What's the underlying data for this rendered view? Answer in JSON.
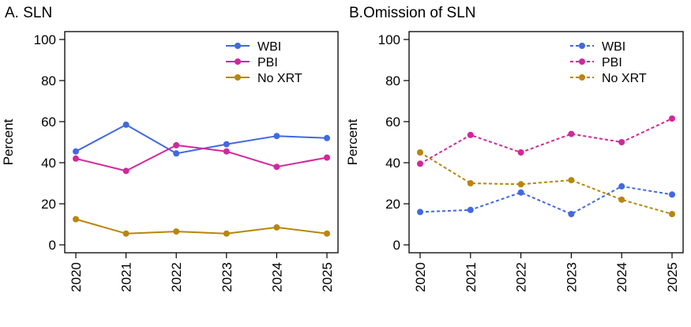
{
  "chart_data": [
    {
      "type": "line",
      "title": "A. SLN",
      "ylabel": "Percent",
      "xlabel": "",
      "categories": [
        "2020",
        "2021",
        "2022",
        "2023",
        "2024",
        "2025"
      ],
      "yticks": [
        0,
        20,
        40,
        60,
        80,
        100
      ],
      "ylim": [
        0,
        100
      ],
      "grid": false,
      "legend_position": "top-right",
      "line_style": "solid",
      "series": [
        {
          "name": "WBI",
          "color": "#4169e1",
          "values": [
            45.5,
            58.5,
            44.5,
            49,
            53,
            52
          ]
        },
        {
          "name": "PBI",
          "color": "#d2279b",
          "values": [
            42,
            36,
            48.5,
            45.5,
            38,
            42.5
          ]
        },
        {
          "name": "No XRT",
          "color": "#b8860b",
          "values": [
            12.5,
            5.5,
            6.5,
            5.5,
            8.5,
            5.5
          ]
        }
      ]
    },
    {
      "type": "line",
      "title": "B.Omission of SLN",
      "ylabel": "Percent",
      "xlabel": "",
      "categories": [
        "2020",
        "2021",
        "2022",
        "2023",
        "2024",
        "2025"
      ],
      "yticks": [
        0,
        20,
        40,
        60,
        80,
        100
      ],
      "ylim": [
        0,
        100
      ],
      "grid": false,
      "legend_position": "top-right",
      "line_style": "dotted",
      "series": [
        {
          "name": "WBI",
          "color": "#4169e1",
          "values": [
            16,
            17,
            25.5,
            15,
            28.5,
            24.5
          ]
        },
        {
          "name": "PBI",
          "color": "#d2279b",
          "values": [
            39.5,
            53.5,
            45,
            54,
            50,
            61.5
          ]
        },
        {
          "name": "No XRT",
          "color": "#b8860b",
          "values": [
            45,
            30,
            29.5,
            31.5,
            22,
            15
          ]
        }
      ]
    }
  ]
}
